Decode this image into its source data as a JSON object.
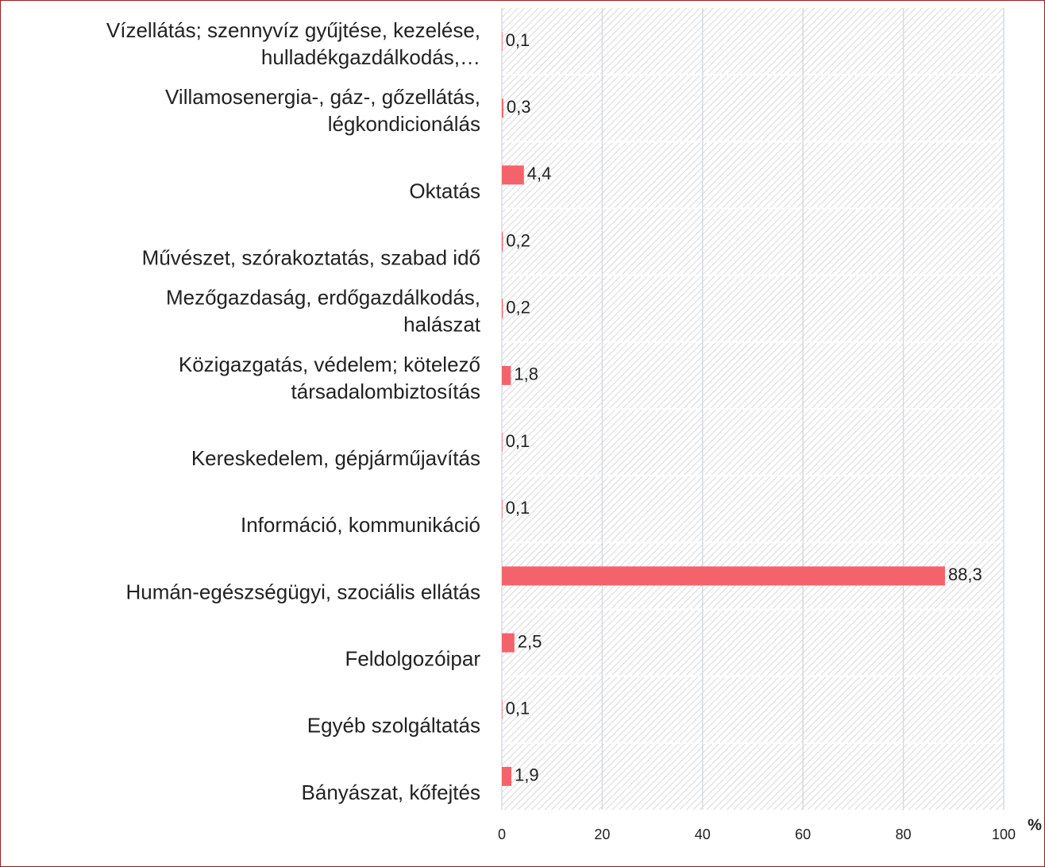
{
  "chart_data": {
    "type": "bar",
    "orientation": "horizontal",
    "categories": [
      [
        "Vízellátás; szennyvíz gyűjtése, kezelése,",
        "hulladékgazdálkodás,…"
      ],
      [
        "Villamosenergia-, gáz-, gőzellátás,",
        "légkondicionálás"
      ],
      [
        "Oktatás"
      ],
      [
        "Művészet, szórakoztatás, szabad idő"
      ],
      [
        "Mezőgazdaság, erdőgazdálkodás,",
        "halászat"
      ],
      [
        "Közigazgatás, védelem; kötelező",
        "társadalombiztosítás"
      ],
      [
        "Kereskedelem, gépjárműjavítás"
      ],
      [
        "Információ, kommunikáció"
      ],
      [
        "Humán-egészségügyi, szociális ellátás"
      ],
      [
        "Feldolgozóipar"
      ],
      [
        "Egyéb szolgáltatás"
      ],
      [
        "Bányászat, kőfejtés"
      ]
    ],
    "values": [
      0.1,
      0.3,
      4.4,
      0.2,
      0.2,
      1.8,
      0.1,
      0.1,
      88.3,
      2.5,
      0.1,
      1.9
    ],
    "value_labels": [
      "0,1",
      "0,3",
      "4,4",
      "0,2",
      "0,2",
      "1,8",
      "0,1",
      "0,1",
      "88,3",
      "2,5",
      "0,1",
      "1,9"
    ],
    "color": "#f4636b",
    "xlim": [
      0,
      100
    ],
    "xticks": [
      0,
      20,
      40,
      60,
      80,
      100
    ],
    "x_label": "%",
    "grid": true
  }
}
